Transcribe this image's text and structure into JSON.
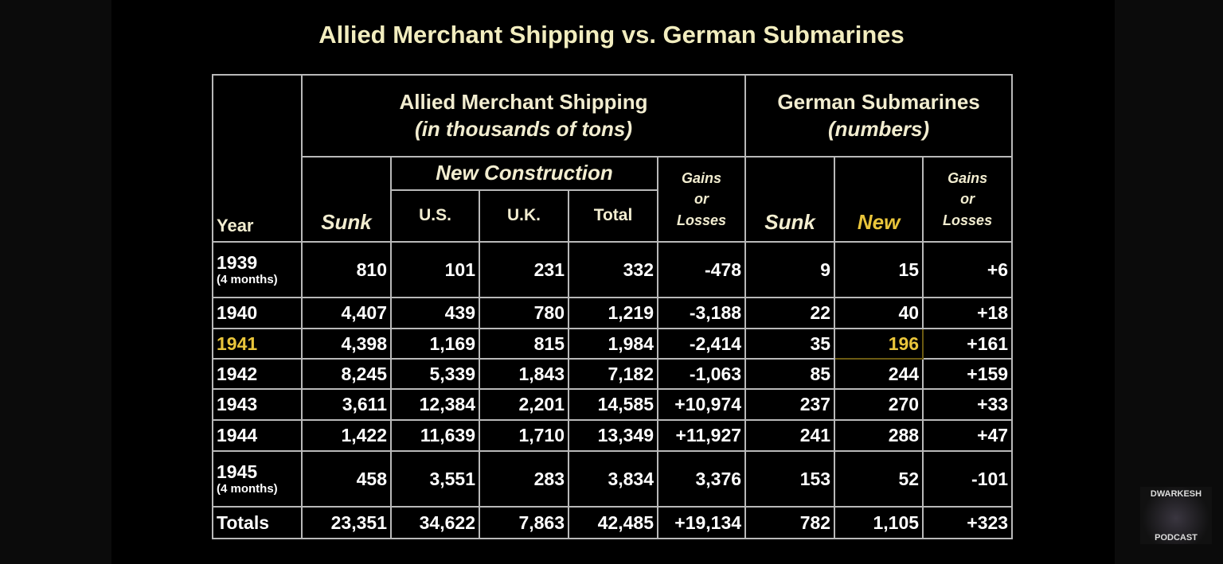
{
  "title": "Allied Merchant Shipping vs. German Submarines",
  "logo": {
    "top": "DWARKESH",
    "bottom": "PODCAST"
  },
  "colors": {
    "header_text": "#f2edd0",
    "highlight": "#e9c53b",
    "grid": "#b9b9b9",
    "background": "#000000"
  },
  "chart_data": {
    "type": "table",
    "title": "Allied Merchant Shipping vs. German Submarines",
    "headers": {
      "year": "Year",
      "group_allied": "Allied Merchant Shipping",
      "group_allied_unit": "(in thousands of tons)",
      "group_german": "German Submarines",
      "group_german_unit": "(numbers)",
      "allied_sunk": "Sunk",
      "new_construction": "New Construction",
      "us": "U.S.",
      "uk": "U.K.",
      "total": "Total",
      "gains_or_losses": [
        "Gains",
        "or",
        "Losses"
      ],
      "sub_sunk": "Sunk",
      "sub_new": "New",
      "sub_gains_or_losses": [
        "Gains",
        "or",
        "Losses"
      ]
    },
    "highlighted": {
      "year": "1941",
      "column": "New",
      "cell": "196"
    },
    "rows": [
      {
        "year": "1939",
        "note": "(4 months)",
        "cells": [
          "810",
          "101",
          "231",
          "332",
          "-478",
          "9",
          "15",
          "+6"
        ]
      },
      {
        "year": "1940",
        "note": "",
        "cells": [
          "4,407",
          "439",
          "780",
          "1,219",
          "-3,188",
          "22",
          "40",
          "+18"
        ]
      },
      {
        "year": "1941",
        "note": "",
        "cells": [
          "4,398",
          "1,169",
          "815",
          "1,984",
          "-2,414",
          "35",
          "196",
          "+161"
        ]
      },
      {
        "year": "1942",
        "note": "",
        "cells": [
          "8,245",
          "5,339",
          "1,843",
          "7,182",
          "-1,063",
          "85",
          "244",
          "+159"
        ]
      },
      {
        "year": "1943",
        "note": "",
        "cells": [
          "3,611",
          "12,384",
          "2,201",
          "14,585",
          "+10,974",
          "237",
          "270",
          "+33"
        ]
      },
      {
        "year": "1944",
        "note": "",
        "cells": [
          "1,422",
          "11,639",
          "1,710",
          "13,349",
          "+11,927",
          "241",
          "288",
          "+47"
        ]
      },
      {
        "year": "1945",
        "note": "(4 months)",
        "cells": [
          "458",
          "3,551",
          "283",
          "3,834",
          "3,376",
          "153",
          "52",
          "-101"
        ]
      },
      {
        "year": "Totals",
        "note": "",
        "cells": [
          "23,351",
          "34,622",
          "7,863",
          "42,485",
          "+19,134",
          "782",
          "1,105",
          "+323"
        ]
      }
    ]
  }
}
